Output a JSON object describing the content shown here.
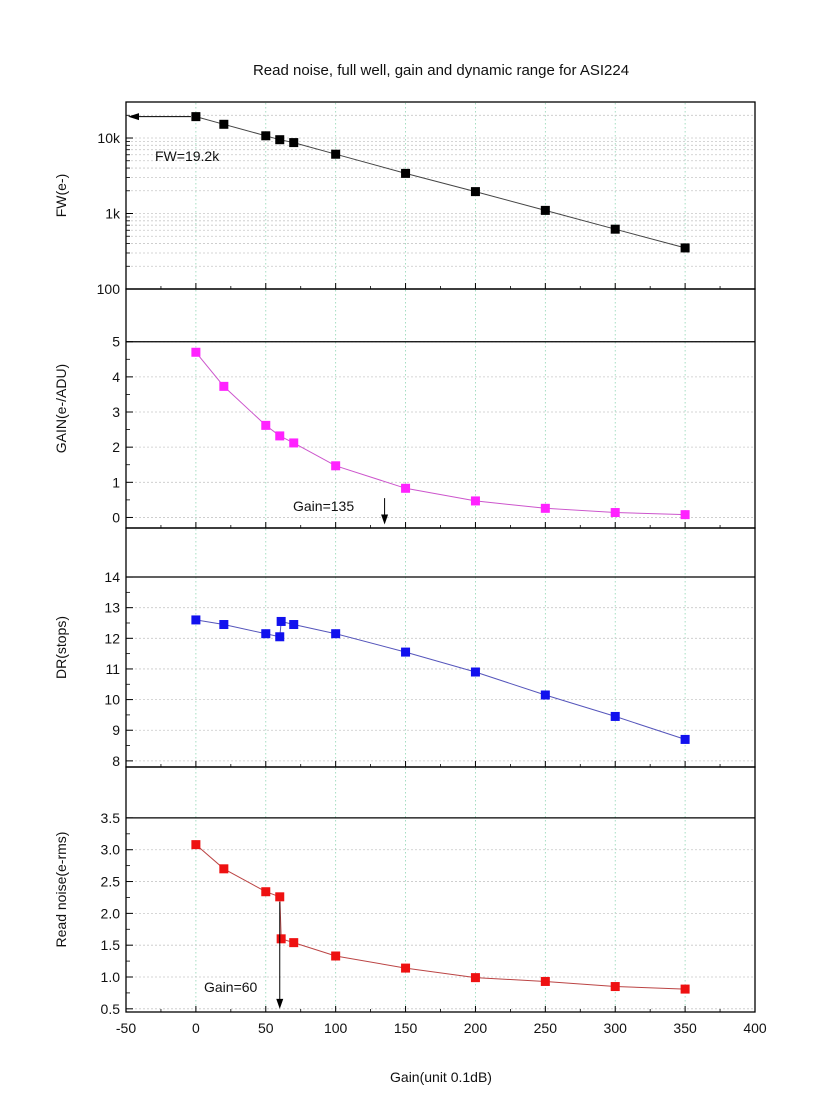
{
  "chart_data": {
    "type": "scatter",
    "title": "Read noise, full well, gain and dynamic range for ASI224",
    "xlabel": "Gain(unit 0.1dB)",
    "xlim": [
      -50,
      400
    ],
    "xticks": [
      "-50",
      "0",
      "50",
      "100",
      "150",
      "200",
      "250",
      "300",
      "350",
      "400"
    ],
    "xtick_values": [
      -50,
      0,
      50,
      100,
      150,
      200,
      250,
      300,
      350,
      400
    ],
    "grid": true,
    "panels": [
      {
        "id": "fw",
        "ylabel": "FW(e-)",
        "scale": "log",
        "ylim": [
          100,
          30000
        ],
        "yticks": [
          "100",
          "1k",
          "10k"
        ],
        "ytick_values": [
          100,
          1000,
          10000
        ],
        "color": "#000000",
        "line_color": "#444444",
        "series": {
          "name": "FW",
          "x": [
            0,
            20,
            50,
            60,
            70,
            100,
            150,
            200,
            250,
            300,
            350
          ],
          "y": [
            19200,
            15200,
            10700,
            9500,
            8700,
            6100,
            3400,
            1950,
            1100,
            620,
            350
          ]
        },
        "annotation": {
          "text": "FW=19.2k",
          "x": 0,
          "y": 19200,
          "arrow_to_x": -50
        }
      },
      {
        "id": "gain",
        "ylabel": "GAIN(e-/ADU)",
        "scale": "linear",
        "ylim": [
          -0.3,
          6.5
        ],
        "axis_top": 5,
        "yticks": [
          "0",
          "1",
          "2",
          "3",
          "4",
          "5"
        ],
        "ytick_values": [
          0,
          1,
          2,
          3,
          4,
          5
        ],
        "color": "#ff22ff",
        "line_color": "#cc55cc",
        "series": {
          "name": "GAIN",
          "x": [
            0,
            20,
            50,
            60,
            70,
            100,
            150,
            200,
            250,
            300,
            350
          ],
          "y": [
            4.7,
            3.73,
            2.62,
            2.32,
            2.12,
            1.47,
            0.83,
            0.47,
            0.26,
            0.14,
            0.08
          ]
        },
        "annotation": {
          "text": "Gain=135",
          "x": 135,
          "y_from": 0.55,
          "y_to": -0.2
        }
      },
      {
        "id": "dr",
        "ylabel": "DR(stops)",
        "scale": "linear",
        "ylim": [
          7.8,
          15.6
        ],
        "axis_top": 14,
        "yticks": [
          "8",
          "9",
          "10",
          "11",
          "12",
          "13",
          "14"
        ],
        "ytick_values": [
          8,
          9,
          10,
          11,
          12,
          13,
          14
        ],
        "color": "#1111ee",
        "line_color": "#5555bb",
        "series": {
          "name": "DR",
          "x": [
            0,
            20,
            50,
            60,
            61,
            70,
            100,
            150,
            200,
            250,
            300,
            350
          ],
          "y": [
            12.6,
            12.45,
            12.15,
            12.05,
            12.55,
            12.45,
            12.15,
            11.55,
            10.9,
            10.15,
            9.45,
            8.7
          ]
        }
      },
      {
        "id": "rn",
        "ylabel": "Read noise(e-rms)",
        "scale": "linear",
        "ylim": [
          0.45,
          4.3
        ],
        "axis_top": 3.5,
        "yticks": [
          "0.5",
          "1.0",
          "1.5",
          "2.0",
          "2.5",
          "3.0",
          "3.5"
        ],
        "ytick_values": [
          0.5,
          1.0,
          1.5,
          2.0,
          2.5,
          3.0,
          3.5
        ],
        "color": "#ee1111",
        "line_color": "#bb4444",
        "series": {
          "name": "Read noise",
          "x": [
            0,
            20,
            50,
            60,
            61,
            70,
            100,
            150,
            200,
            250,
            300,
            350
          ],
          "y": [
            3.08,
            2.7,
            2.34,
            2.26,
            1.6,
            1.54,
            1.33,
            1.14,
            0.99,
            0.93,
            0.85,
            0.81
          ]
        },
        "annotation": {
          "text": "Gain=60",
          "x": 60,
          "y_from": 2.26,
          "y_to": 0.5
        }
      }
    ]
  }
}
